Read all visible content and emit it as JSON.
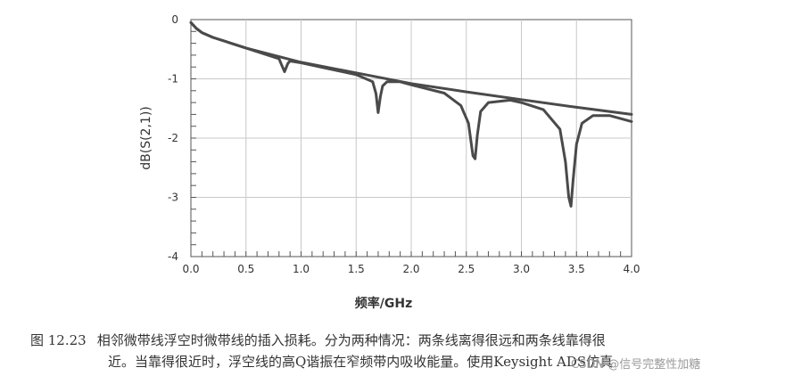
{
  "chart_data": {
    "type": "line",
    "ylabel": "dB(S(2,1))",
    "xlabel": "频率/GHz",
    "xlim": [
      0.0,
      4.0
    ],
    "ylim": [
      -4,
      0
    ],
    "x_ticks": [
      "0.0",
      "0.5",
      "1.0",
      "1.5",
      "2.0",
      "2.5",
      "3.0",
      "3.5",
      "4.0"
    ],
    "y_ticks": [
      "0",
      "-1",
      "-2",
      "-3",
      "-4"
    ],
    "grid": true,
    "series": [
      {
        "x": [
          0.0,
          0.05,
          0.1,
          0.2,
          0.5,
          1.0,
          1.5,
          2.0,
          2.5,
          3.0,
          3.5,
          4.0
        ],
        "y": [
          -0.05,
          -0.15,
          -0.22,
          -0.3,
          -0.48,
          -0.72,
          -0.9,
          -1.08,
          -1.22,
          -1.35,
          -1.48,
          -1.6
        ]
      },
      {
        "x": [
          0.0,
          0.05,
          0.1,
          0.2,
          0.5,
          0.8,
          0.82,
          0.85,
          0.88,
          0.9,
          1.0,
          1.5,
          1.65,
          1.68,
          1.7,
          1.72,
          1.74,
          1.78,
          1.9,
          2.0,
          2.3,
          2.45,
          2.52,
          2.56,
          2.58,
          2.6,
          2.63,
          2.7,
          2.9,
          3.0,
          3.2,
          3.35,
          3.4,
          3.43,
          3.45,
          3.47,
          3.5,
          3.55,
          3.65,
          3.8,
          4.0
        ],
        "y": [
          -0.05,
          -0.15,
          -0.22,
          -0.3,
          -0.48,
          -0.66,
          -0.75,
          -0.88,
          -0.74,
          -0.7,
          -0.73,
          -0.93,
          -1.05,
          -1.25,
          -1.57,
          -1.3,
          -1.12,
          -1.05,
          -1.05,
          -1.1,
          -1.24,
          -1.45,
          -1.75,
          -2.3,
          -2.35,
          -1.95,
          -1.55,
          -1.4,
          -1.36,
          -1.4,
          -1.52,
          -1.85,
          -2.4,
          -3.0,
          -3.15,
          -2.7,
          -2.1,
          -1.75,
          -1.62,
          -1.62,
          -1.72
        ]
      }
    ]
  },
  "caption": {
    "figure_number": "图 12.23",
    "line1": "相邻微带线浮空时微带线的插入损耗。分为两种情况：两条线离得很远和两条线靠得很",
    "line2": "近。当靠得很近时，浮空线的高Q谐振在窄频带内吸收能量。使用Keysight ADS仿真"
  },
  "watermark": "CSDN @信号完整性加糖"
}
